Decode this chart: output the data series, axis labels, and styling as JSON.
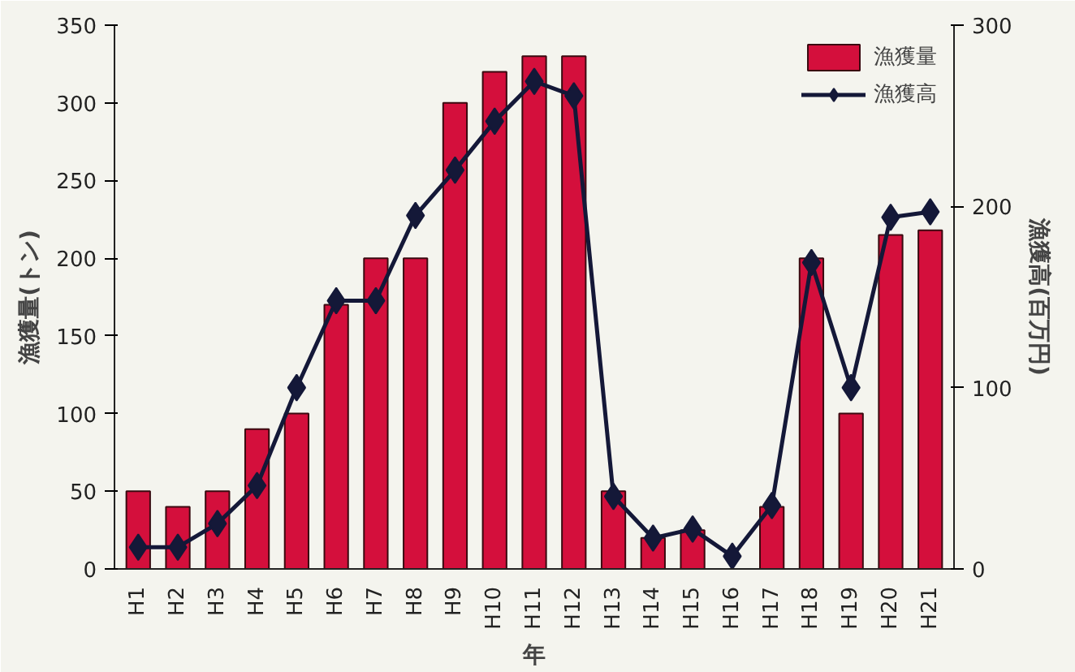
{
  "chart_data": {
    "type": "bar",
    "xlabel": "年",
    "ylabel": "漁獲量(トン)",
    "y2label": "漁獲高(百万円)",
    "categories": [
      "H1",
      "H2",
      "H3",
      "H4",
      "H5",
      "H6",
      "H7",
      "H8",
      "H9",
      "H10",
      "H11",
      "H12",
      "H13",
      "H14",
      "H15",
      "H16",
      "H17",
      "H18",
      "H19",
      "H20",
      "H21"
    ],
    "series": [
      {
        "name": "漁獲量",
        "color": "#d40f3c",
        "values": [
          50,
          40,
          50,
          90,
          100,
          170,
          200,
          200,
          300,
          320,
          330,
          330,
          50,
          20,
          25,
          null,
          40,
          200,
          100,
          215,
          218
        ]
      },
      {
        "name": "漁獲高",
        "type": "line",
        "axis": "y2",
        "color": "#141838",
        "marker": "diamond",
        "values": [
          12,
          12,
          25,
          46,
          100,
          148,
          148,
          195,
          220,
          247,
          269,
          261,
          40,
          17,
          22,
          7,
          35,
          169,
          100,
          194,
          197
        ]
      }
    ],
    "ylim": [
      0,
      350
    ],
    "yticks": [
      0,
      50,
      100,
      150,
      200,
      250,
      300,
      350
    ],
    "y2lim": [
      0,
      300
    ],
    "y2ticks": [
      0,
      100,
      200,
      300
    ],
    "legend": "top right",
    "grid": false
  }
}
